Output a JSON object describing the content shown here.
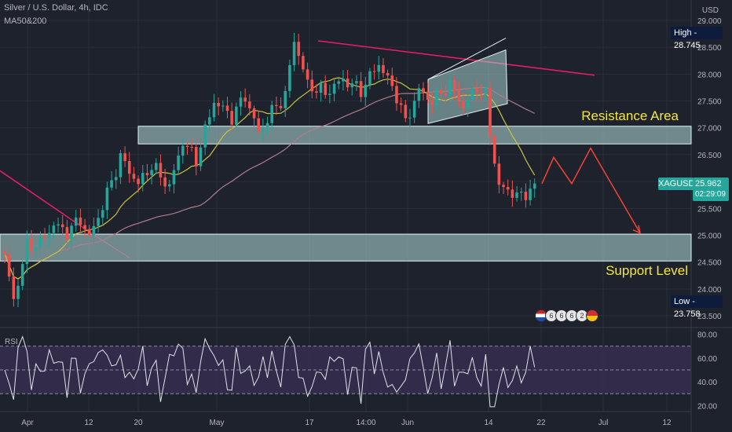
{
  "header": {
    "symbol_line": "Silver / U.S. Dollar, 4h, IDC",
    "indicator_line": "MA50&200",
    "currency": "USD"
  },
  "annotations": {
    "resistance_label": "Resistance Area",
    "support_label": "Support Level"
  },
  "badges": {
    "high_label": "High",
    "high_value": "28.745",
    "low_label": "Low",
    "low_value": "23.758",
    "ticker": "XAGUSD",
    "price": "25.962",
    "countdown": "02:29:09"
  },
  "events": [
    "6",
    "6",
    "6",
    "2"
  ],
  "rsi": {
    "label": "RSI",
    "ticks": [
      "80.00",
      "60.00",
      "40.00",
      "20.00"
    ],
    "levels": [
      70,
      50,
      30
    ]
  },
  "colors": {
    "background": "#1e222d",
    "up": "#26a69a",
    "down": "#ef5350",
    "zone": "#b2dfdb",
    "trendline": "#e91e63",
    "forecast": "#f44336",
    "ma50": "#c9c23f",
    "ma200": "#b07d8a",
    "text_yellow": "#f4e542",
    "rsi_bg": "#3b2f55"
  },
  "chart_data": {
    "type": "candlestick",
    "title": "Silver / U.S. Dollar, 4h, IDC",
    "x_ticks": [
      "Apr",
      "12",
      "20",
      "May",
      "17",
      "14:00",
      "Jun",
      "14",
      "22",
      "Jul",
      "12"
    ],
    "y_ticks": [
      "29.000",
      "28.500",
      "28.000",
      "27.500",
      "27.000",
      "26.500",
      "26.000",
      "25.500",
      "25.000",
      "24.500",
      "24.000",
      "23.500"
    ],
    "ylim": [
      23.3,
      29.1
    ],
    "high": 28.745,
    "low": 23.758,
    "last": 25.962,
    "key_points": [
      {
        "t": 0,
        "v": 24.6
      },
      {
        "t": 2,
        "v": 23.8
      },
      {
        "t": 5,
        "v": 24.8
      },
      {
        "t": 8,
        "v": 24.85
      },
      {
        "t": 11,
        "v": 25.2
      },
      {
        "t": 14,
        "v": 25.05
      },
      {
        "t": 17,
        "v": 25.3
      },
      {
        "t": 19,
        "v": 24.95
      },
      {
        "t": 22,
        "v": 25.55
      },
      {
        "t": 26,
        "v": 26.45
      },
      {
        "t": 30,
        "v": 25.95
      },
      {
        "t": 33,
        "v": 26.3
      },
      {
        "t": 37,
        "v": 25.9
      },
      {
        "t": 40,
        "v": 26.75
      },
      {
        "t": 43,
        "v": 26.4
      },
      {
        "t": 47,
        "v": 27.5
      },
      {
        "t": 51,
        "v": 27.2
      },
      {
        "t": 54,
        "v": 27.6
      },
      {
        "t": 57,
        "v": 26.9
      },
      {
        "t": 60,
        "v": 27.3
      },
      {
        "t": 63,
        "v": 27.6
      },
      {
        "t": 65,
        "v": 28.65
      },
      {
        "t": 68,
        "v": 27.8
      },
      {
        "t": 72,
        "v": 27.65
      },
      {
        "t": 76,
        "v": 27.9
      },
      {
        "t": 80,
        "v": 27.7
      },
      {
        "t": 84,
        "v": 28.2
      },
      {
        "t": 88,
        "v": 27.6
      },
      {
        "t": 90,
        "v": 27.1
      },
      {
        "t": 93,
        "v": 27.7
      },
      {
        "t": 96,
        "v": 27.5
      },
      {
        "t": 100,
        "v": 27.8
      },
      {
        "t": 103,
        "v": 27.4
      },
      {
        "t": 106,
        "v": 27.75
      },
      {
        "t": 108,
        "v": 27.6
      },
      {
        "t": 109,
        "v": 26.9
      },
      {
        "t": 111,
        "v": 25.9
      },
      {
        "t": 114,
        "v": 25.8
      },
      {
        "t": 116,
        "v": 25.7
      },
      {
        "t": 119,
        "v": 25.96
      }
    ],
    "zones": [
      {
        "name": "Resistance Area",
        "from": 26.7,
        "to": 27.03
      },
      {
        "name": "Support Level",
        "from": 24.52,
        "to": 25.02
      }
    ],
    "forecast_path": [
      25.96,
      26.45,
      25.96,
      26.62,
      25.04
    ],
    "rsi_ylim": [
      15,
      82
    ]
  }
}
